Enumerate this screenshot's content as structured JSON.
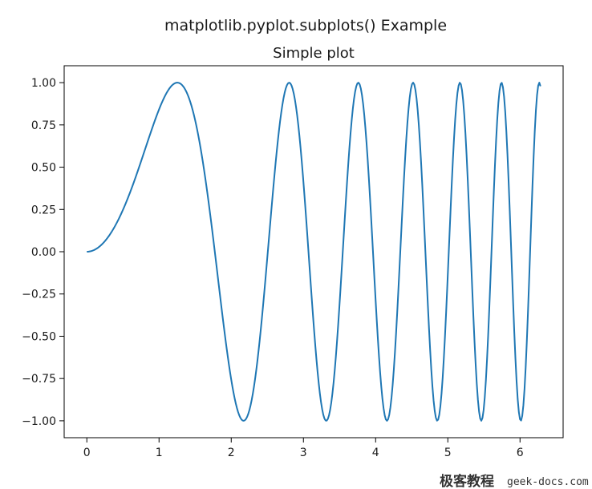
{
  "figure": {
    "suptitle": "matplotlib.pyplot.subplots() Example",
    "watermark": {
      "brand": "极客教程",
      "url": "geek-docs.com"
    }
  },
  "chart_data": {
    "type": "line",
    "title": "Simple plot",
    "xlabel": "",
    "ylabel": "",
    "xlim": [
      -0.314,
      6.597
    ],
    "ylim": [
      -1.1,
      1.1
    ],
    "xticks": [
      0,
      1,
      2,
      3,
      4,
      5,
      6
    ],
    "xtick_labels": [
      "0",
      "1",
      "2",
      "3",
      "4",
      "5",
      "6"
    ],
    "yticks": [
      1.0,
      0.75,
      0.5,
      0.25,
      0.0,
      -0.25,
      -0.5,
      -0.75,
      -1.0
    ],
    "ytick_labels": [
      "1.00",
      "0.75",
      "0.50",
      "0.25",
      "0.00",
      "−0.25",
      "−0.50",
      "−0.75",
      "−1.00"
    ],
    "grid": false,
    "series": [
      {
        "function": "y = sin(x^2)",
        "x_range": [
          0,
          6.283
        ],
        "num_points": 400,
        "color": "#1f77b4"
      }
    ]
  }
}
